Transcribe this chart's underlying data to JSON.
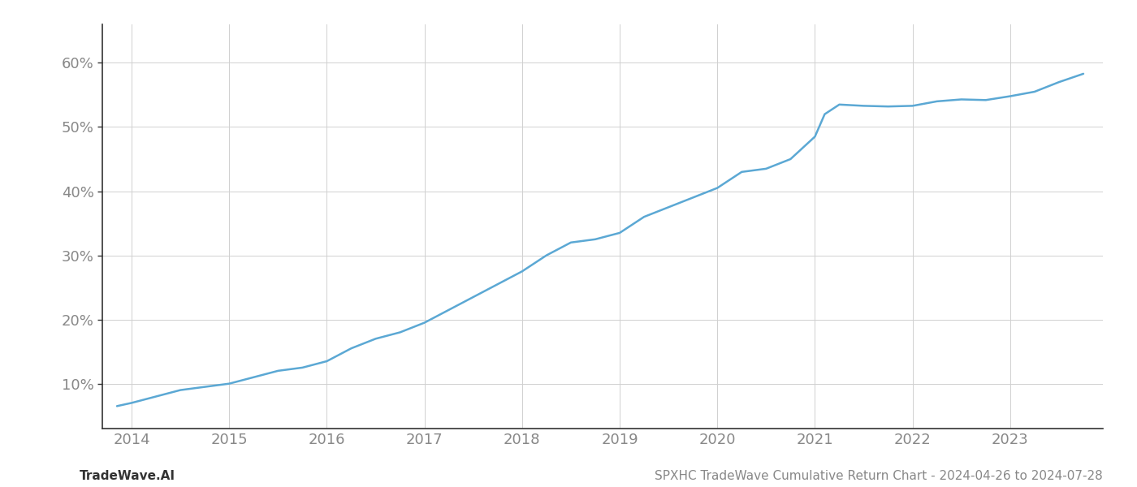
{
  "x_years": [
    2013.85,
    2014.0,
    2014.25,
    2014.5,
    2014.75,
    2015.0,
    2015.25,
    2015.5,
    2015.75,
    2016.0,
    2016.25,
    2016.5,
    2016.75,
    2017.0,
    2017.25,
    2017.5,
    2017.75,
    2018.0,
    2018.25,
    2018.5,
    2018.75,
    2019.0,
    2019.25,
    2019.5,
    2019.75,
    2020.0,
    2020.25,
    2020.5,
    2020.75,
    2021.0,
    2021.1,
    2021.25,
    2021.5,
    2021.75,
    2022.0,
    2022.25,
    2022.5,
    2022.75,
    2023.0,
    2023.25,
    2023.5,
    2023.75
  ],
  "y_values": [
    6.5,
    7.0,
    8.0,
    9.0,
    9.5,
    10.0,
    11.0,
    12.0,
    12.5,
    13.5,
    15.5,
    17.0,
    18.0,
    19.5,
    21.5,
    23.5,
    25.5,
    27.5,
    30.0,
    32.0,
    32.5,
    33.5,
    36.0,
    37.5,
    39.0,
    40.5,
    43.0,
    43.5,
    45.0,
    48.5,
    52.0,
    53.5,
    53.3,
    53.2,
    53.3,
    54.0,
    54.3,
    54.2,
    54.8,
    55.5,
    57.0,
    58.3
  ],
  "line_color": "#5ba8d4",
  "line_width": 1.8,
  "background_color": "#ffffff",
  "grid_color": "#d0d0d0",
  "x_tick_labels": [
    "2014",
    "2015",
    "2016",
    "2017",
    "2018",
    "2019",
    "2020",
    "2021",
    "2022",
    "2023"
  ],
  "x_tick_positions": [
    2014,
    2015,
    2016,
    2017,
    2018,
    2019,
    2020,
    2021,
    2022,
    2023
  ],
  "y_tick_positions": [
    10,
    20,
    30,
    40,
    50,
    60
  ],
  "y_tick_labels": [
    "10%",
    "20%",
    "30%",
    "40%",
    "50%",
    "60%"
  ],
  "xlim": [
    2013.7,
    2023.95
  ],
  "ylim": [
    3,
    66
  ],
  "footer_left": "TradeWave.AI",
  "footer_right": "SPXHC TradeWave Cumulative Return Chart - 2024-04-26 to 2024-07-28",
  "footer_fontsize": 11,
  "tick_fontsize": 13,
  "label_color": "#888888",
  "spine_color": "#333333",
  "left_spine_visible": true
}
